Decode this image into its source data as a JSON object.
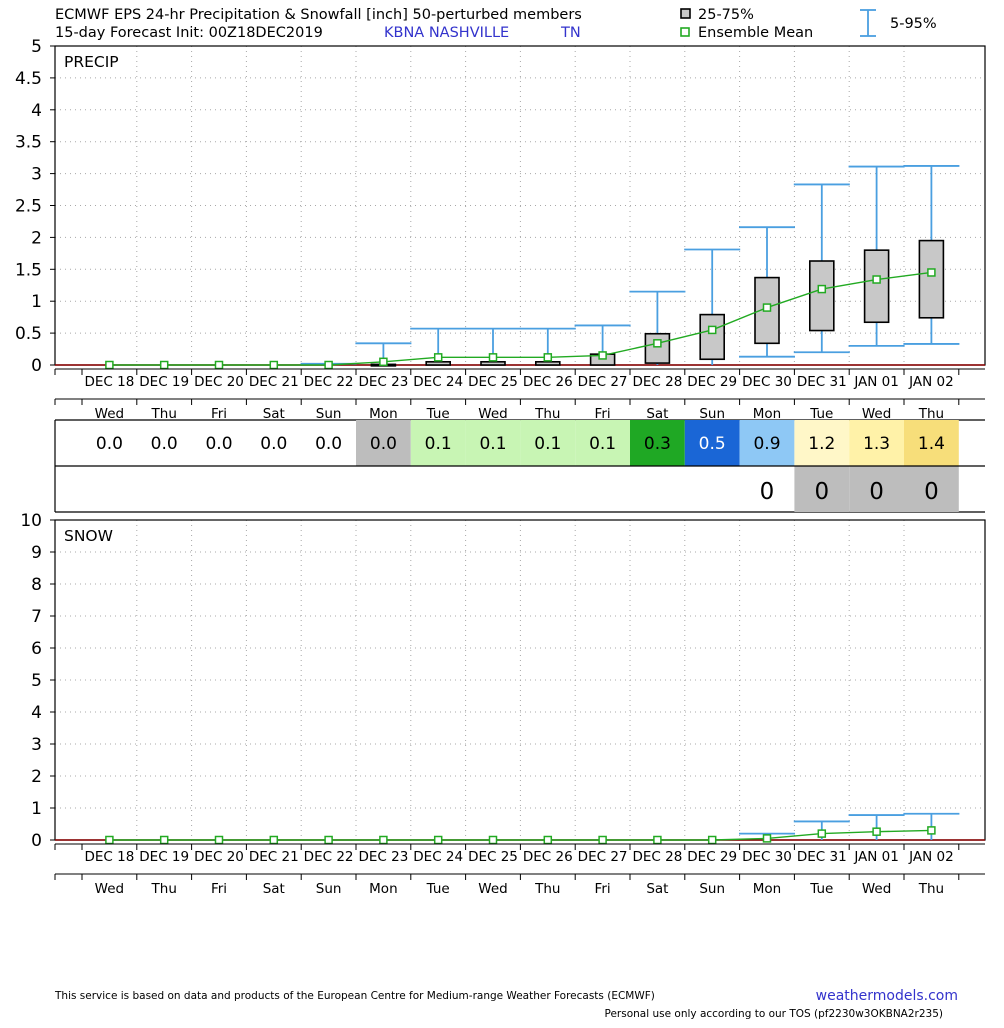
{
  "header": {
    "title_line1": "ECMWF EPS 24-hr Precipitation & Snowfall [inch]  50-perturbed members",
    "title_line2": "15-day Forecast Init: 00Z18DEC2019",
    "station": "KBNA  NASHVILLE",
    "state": "TN",
    "legend": {
      "box_label": "25-75%",
      "mean_label": "Ensemble Mean",
      "whisker_label": "5-95%"
    }
  },
  "colors": {
    "whisker": "#4a9fe0",
    "mean": "#22aa22",
    "mean_marker_fill": "#ffffff",
    "box_fill": "#c8c8c8",
    "station_text": "#3333cc",
    "footer_link": "#3333cc"
  },
  "footer": {
    "disclaimer": "This service is based on data and products of the European Centre for Medium-range Weather Forecasts (ECMWF)",
    "site": "weathermodels.com",
    "tos": "Personal use only according to our TOS (pf2230w3OKBNA2r235)"
  },
  "chart_data": [
    {
      "type": "box",
      "panel_label": "PRECIP",
      "ylim": [
        0,
        5
      ],
      "yticks": [
        "0",
        "0.5",
        "1",
        "1.5",
        "2",
        "2.5",
        "3",
        "3.5",
        "4",
        "4.5",
        "5"
      ],
      "grid": true,
      "categories": [
        "DEC 18",
        "DEC 19",
        "DEC 20",
        "DEC 21",
        "DEC 22",
        "DEC 23",
        "DEC 24",
        "DEC 25",
        "DEC 26",
        "DEC 27",
        "DEC 28",
        "DEC 29",
        "DEC 30",
        "DEC 31",
        "JAN 01",
        "JAN 02"
      ],
      "weekdays": [
        "Wed",
        "Thu",
        "Fri",
        "Sat",
        "Sun",
        "Mon",
        "Tue",
        "Wed",
        "Thu",
        "Fri",
        "Sat",
        "Sun",
        "Mon",
        "Tue",
        "Wed",
        "Thu"
      ],
      "p5": [
        0,
        0,
        0,
        0,
        0,
        0,
        0,
        0,
        0,
        0,
        0,
        0,
        0.13,
        0.2,
        0.3,
        0.33
      ],
      "p25": [
        0,
        0,
        0,
        0,
        0,
        0,
        0,
        0,
        0,
        0,
        0.03,
        0.09,
        0.34,
        0.54,
        0.67,
        0.74
      ],
      "p75": [
        0,
        0,
        0,
        0,
        0,
        0.01,
        0.05,
        0.05,
        0.05,
        0.17,
        0.49,
        0.79,
        1.37,
        1.63,
        1.8,
        1.95
      ],
      "p95": [
        0,
        0,
        0,
        0,
        0.02,
        0.34,
        0.57,
        0.57,
        0.57,
        0.62,
        1.15,
        1.81,
        2.16,
        2.83,
        3.11,
        3.12
      ],
      "mean": [
        0,
        0,
        0,
        0,
        0,
        0.05,
        0.12,
        0.12,
        0.12,
        0.15,
        0.34,
        0.55,
        0.9,
        1.19,
        1.34,
        1.45
      ]
    },
    {
      "type": "box",
      "panel_label": "SNOW",
      "ylim": [
        0,
        10
      ],
      "yticks": [
        "0",
        "1",
        "2",
        "3",
        "4",
        "5",
        "6",
        "7",
        "8",
        "9",
        "10"
      ],
      "grid": true,
      "categories": [
        "DEC 18",
        "DEC 19",
        "DEC 20",
        "DEC 21",
        "DEC 22",
        "DEC 23",
        "DEC 24",
        "DEC 25",
        "DEC 26",
        "DEC 27",
        "DEC 28",
        "DEC 29",
        "DEC 30",
        "DEC 31",
        "JAN 01",
        "JAN 02"
      ],
      "weekdays": [
        "Wed",
        "Thu",
        "Fri",
        "Sat",
        "Sun",
        "Mon",
        "Tue",
        "Wed",
        "Thu",
        "Fri",
        "Sat",
        "Sun",
        "Mon",
        "Tue",
        "Wed",
        "Thu"
      ],
      "p5": [
        0,
        0,
        0,
        0,
        0,
        0,
        0,
        0,
        0,
        0,
        0,
        0,
        0,
        0,
        0,
        0
      ],
      "p25": [
        0,
        0,
        0,
        0,
        0,
        0,
        0,
        0,
        0,
        0,
        0,
        0,
        0,
        0,
        0,
        0
      ],
      "p75": [
        0,
        0,
        0,
        0,
        0,
        0,
        0,
        0,
        0,
        0,
        0,
        0,
        0,
        0,
        0,
        0
      ],
      "p95": [
        0,
        0,
        0,
        0,
        0,
        0,
        0,
        0,
        0,
        0,
        0,
        0,
        0.2,
        0.58,
        0.78,
        0.82
      ],
      "mean": [
        0,
        0,
        0,
        0,
        0,
        0,
        0,
        0,
        0,
        0,
        0,
        0,
        0.05,
        0.2,
        0.26,
        0.3
      ]
    },
    {
      "type": "table",
      "rows": [
        {
          "name": "precip_mean",
          "cells": [
            {
              "text": "0.0",
              "bg": "#ffffff",
              "color": "#000000"
            },
            {
              "text": "0.0",
              "bg": "#ffffff",
              "color": "#000000"
            },
            {
              "text": "0.0",
              "bg": "#ffffff",
              "color": "#000000"
            },
            {
              "text": "0.0",
              "bg": "#ffffff",
              "color": "#000000"
            },
            {
              "text": "0.0",
              "bg": "#ffffff",
              "color": "#000000"
            },
            {
              "text": "0.0",
              "bg": "#bdbdbd",
              "color": "#000000"
            },
            {
              "text": "0.1",
              "bg": "#c8f5b4",
              "color": "#000000"
            },
            {
              "text": "0.1",
              "bg": "#c8f5b4",
              "color": "#000000"
            },
            {
              "text": "0.1",
              "bg": "#c8f5b4",
              "color": "#000000"
            },
            {
              "text": "0.1",
              "bg": "#c8f5b4",
              "color": "#000000"
            },
            {
              "text": "0.3",
              "bg": "#1fa824",
              "color": "#000000"
            },
            {
              "text": "0.5",
              "bg": "#1a66d6",
              "color": "#ffffff"
            },
            {
              "text": "0.9",
              "bg": "#8ec8f5",
              "color": "#000000"
            },
            {
              "text": "1.2",
              "bg": "#fff7c8",
              "color": "#000000"
            },
            {
              "text": "1.3",
              "bg": "#fff2a8",
              "color": "#000000"
            },
            {
              "text": "1.4",
              "bg": "#f7de7a",
              "color": "#000000"
            }
          ]
        },
        {
          "name": "snow_mean",
          "cells": [
            {
              "text": "",
              "bg": "#ffffff",
              "color": "#000000"
            },
            {
              "text": "",
              "bg": "#ffffff",
              "color": "#000000"
            },
            {
              "text": "",
              "bg": "#ffffff",
              "color": "#000000"
            },
            {
              "text": "",
              "bg": "#ffffff",
              "color": "#000000"
            },
            {
              "text": "",
              "bg": "#ffffff",
              "color": "#000000"
            },
            {
              "text": "",
              "bg": "#ffffff",
              "color": "#000000"
            },
            {
              "text": "",
              "bg": "#ffffff",
              "color": "#000000"
            },
            {
              "text": "",
              "bg": "#ffffff",
              "color": "#000000"
            },
            {
              "text": "",
              "bg": "#ffffff",
              "color": "#000000"
            },
            {
              "text": "",
              "bg": "#ffffff",
              "color": "#000000"
            },
            {
              "text": "",
              "bg": "#ffffff",
              "color": "#000000"
            },
            {
              "text": "",
              "bg": "#ffffff",
              "color": "#000000"
            },
            {
              "text": "0",
              "bg": "#ffffff",
              "color": "#000000"
            },
            {
              "text": "0",
              "bg": "#bdbdbd",
              "color": "#000000"
            },
            {
              "text": "0",
              "bg": "#bdbdbd",
              "color": "#000000"
            },
            {
              "text": "0",
              "bg": "#bdbdbd",
              "color": "#000000"
            }
          ]
        }
      ]
    }
  ]
}
